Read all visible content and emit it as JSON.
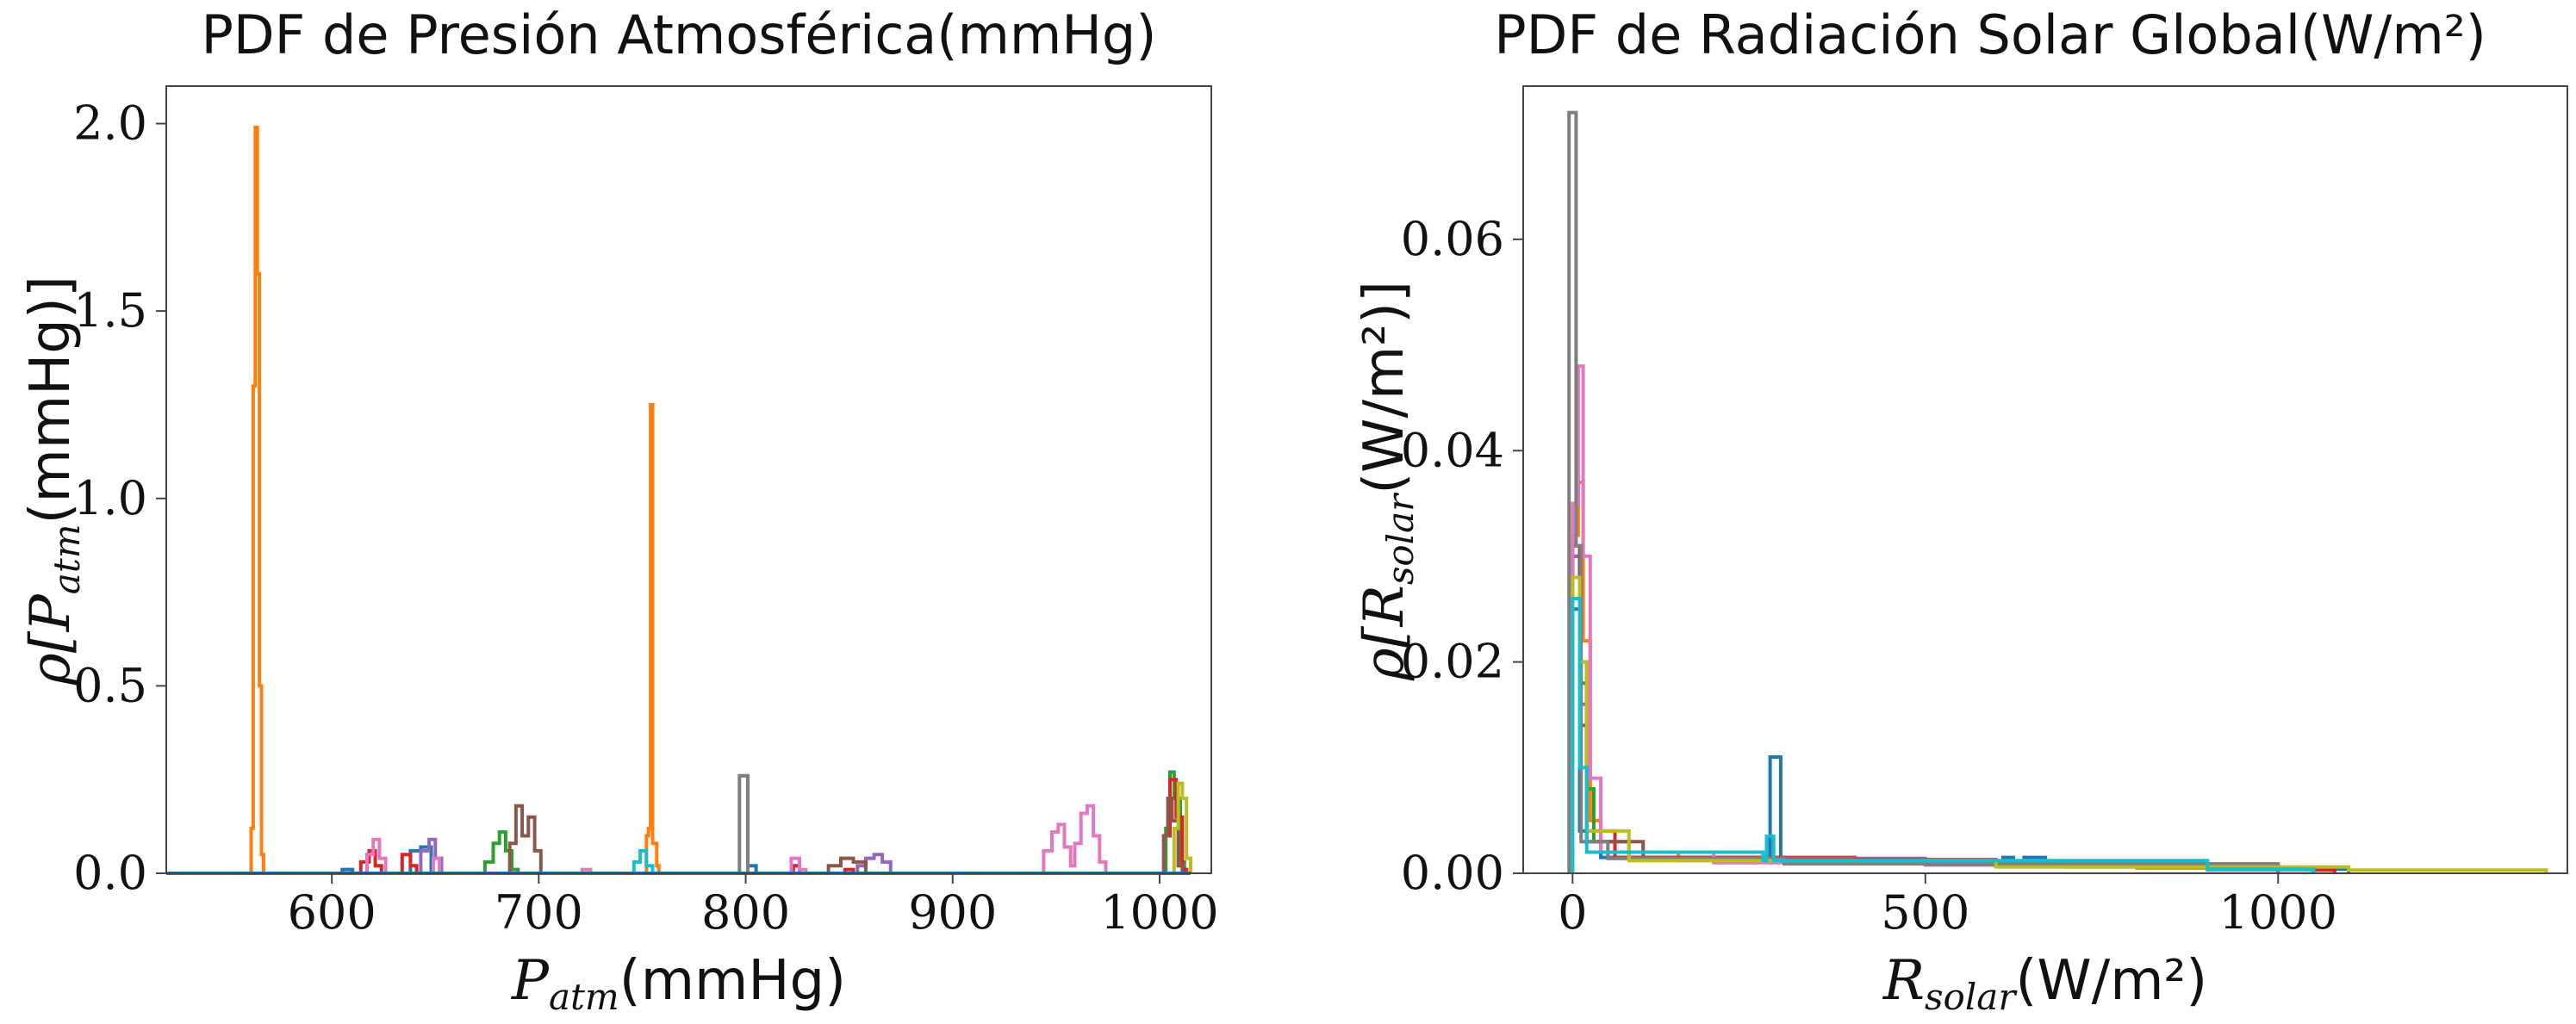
{
  "chart_data": [
    {
      "type": "step histogram",
      "title": "PDF de Presión Atmosférica(mmHg)",
      "xlabel": {
        "math": "P",
        "sub": "atm",
        "unit": "(mmHg)"
      },
      "ylabel": {
        "rho": "ρ[",
        "math": "P",
        "sub": "atm",
        "unit": "(mmHg)]"
      },
      "xlim": [
        520,
        1025
      ],
      "ylim": [
        0,
        2.1
      ],
      "xticks": [
        600,
        700,
        800,
        900,
        1000
      ],
      "xtick_labels": [
        "600",
        "700",
        "800",
        "900",
        "1000"
      ],
      "yticks": [
        0.0,
        0.5,
        1.0,
        1.5,
        2.0
      ],
      "ytick_labels": [
        "0.0",
        "0.5",
        "1.0",
        "1.5",
        "2.0"
      ],
      "grid": false,
      "series": [
        {
          "color": "#1f77b4",
          "values": [
            [
              535,
              0
            ],
            [
              600,
              0
            ],
            [
              605,
              0.01
            ],
            [
              610,
              0
            ],
            [
              635,
              0
            ],
            [
              638,
              0.06
            ],
            [
              643,
              0.07
            ],
            [
              648,
              0
            ],
            [
              800,
              0
            ],
            [
              801,
              0.02
            ],
            [
              805,
              0
            ],
            [
              1000,
              0
            ],
            [
              1015,
              0
            ]
          ]
        },
        {
          "color": "#ff7f0e",
          "values": [
            [
              555,
              0
            ],
            [
              561,
              0.12
            ],
            [
              562,
              1.3
            ],
            [
              563,
              1.99
            ],
            [
              564,
              1.6
            ],
            [
              565,
              0.5
            ],
            [
              566,
              0.05
            ],
            [
              567,
              0
            ],
            [
              750,
              0
            ],
            [
              752,
              0.1
            ],
            [
              753,
              0.12
            ],
            [
              754,
              1.25
            ],
            [
              755,
              0.08
            ],
            [
              757,
              0.02
            ],
            [
              758,
              0
            ]
          ]
        },
        {
          "color": "#2ca02c",
          "values": [
            [
              670,
              0
            ],
            [
              674,
              0.03
            ],
            [
              678,
              0.08
            ],
            [
              681,
              0.11
            ],
            [
              684,
              0.06
            ],
            [
              687,
              0.01
            ],
            [
              690,
              0
            ],
            [
              1000,
              0
            ],
            [
              1003,
              0.12
            ],
            [
              1005,
              0.27
            ],
            [
              1007,
              0.2
            ],
            [
              1010,
              0.03
            ],
            [
              1012,
              0
            ]
          ]
        },
        {
          "color": "#d62728",
          "values": [
            [
              610,
              0
            ],
            [
              614,
              0.03
            ],
            [
              618,
              0.06
            ],
            [
              621,
              0.02
            ],
            [
              624,
              0
            ],
            [
              630,
              0
            ],
            [
              634,
              0.05
            ],
            [
              638,
              0.02
            ],
            [
              641,
              0
            ],
            [
              820,
              0
            ],
            [
              823,
              0.02
            ],
            [
              826,
              0
            ],
            [
              845,
              0
            ],
            [
              848,
              0.01
            ],
            [
              852,
              0
            ],
            [
              998,
              0
            ],
            [
              1002,
              0.1
            ],
            [
              1005,
              0.25
            ],
            [
              1008,
              0.15
            ],
            [
              1011,
              0.01
            ],
            [
              1013,
              0
            ]
          ]
        },
        {
          "color": "#9467bd",
          "values": [
            [
              640,
              0
            ],
            [
              643,
              0.06
            ],
            [
              647,
              0.09
            ],
            [
              650,
              0.04
            ],
            [
              653,
              0
            ],
            [
              850,
              0
            ],
            [
              854,
              0.02
            ],
            [
              858,
              0.04
            ],
            [
              862,
              0.05
            ],
            [
              866,
              0.03
            ],
            [
              870,
              0
            ]
          ]
        },
        {
          "color": "#8c564b",
          "values": [
            [
              682,
              0
            ],
            [
              686,
              0.08
            ],
            [
              689,
              0.18
            ],
            [
              692,
              0.1
            ],
            [
              695,
              0.15
            ],
            [
              698,
              0.06
            ],
            [
              701,
              0
            ],
            [
              835,
              0
            ],
            [
              840,
              0.02
            ],
            [
              846,
              0.04
            ],
            [
              852,
              0.03
            ],
            [
              858,
              0
            ],
            [
              998,
              0
            ],
            [
              1002,
              0.1
            ],
            [
              1004,
              0.2
            ],
            [
              1006,
              0.14
            ],
            [
              1009,
              0.02
            ],
            [
              1011,
              0
            ]
          ]
        },
        {
          "color": "#e377c2",
          "values": [
            [
              614,
              0
            ],
            [
              617,
              0.05
            ],
            [
              620,
              0.09
            ],
            [
              623,
              0.04
            ],
            [
              626,
              0
            ],
            [
              646,
              0
            ],
            [
              649,
              0.04
            ],
            [
              652,
              0
            ],
            [
              718,
              0
            ],
            [
              721,
              0.01
            ],
            [
              725,
              0
            ],
            [
              818,
              0
            ],
            [
              822,
              0.04
            ],
            [
              826,
              0.01
            ],
            [
              829,
              0
            ],
            [
              940,
              0
            ],
            [
              944,
              0.06
            ],
            [
              948,
              0.11
            ],
            [
              951,
              0.13
            ],
            [
              954,
              0.07
            ],
            [
              957,
              0.02
            ],
            [
              959,
              0.08
            ],
            [
              962,
              0.16
            ],
            [
              965,
              0.18
            ],
            [
              968,
              0.1
            ],
            [
              971,
              0.03
            ],
            [
              974,
              0
            ]
          ]
        },
        {
          "color": "#7f7f7f",
          "values": [
            [
              796,
              0
            ],
            [
              797,
              0.26
            ],
            [
              800,
              0.26
            ],
            [
              801,
              0
            ]
          ]
        },
        {
          "color": "#bcbd22",
          "values": [
            [
              1004,
              0
            ],
            [
              1007,
              0.12
            ],
            [
              1009,
              0.24
            ],
            [
              1011,
              0.2
            ],
            [
              1013,
              0.04
            ],
            [
              1015,
              0
            ]
          ]
        },
        {
          "color": "#17becf",
          "values": [
            [
              743,
              0
            ],
            [
              746,
              0.03
            ],
            [
              749,
              0.06
            ],
            [
              752,
              0.02
            ],
            [
              755,
              0
            ]
          ]
        },
        {
          "color": "#1f77b4",
          "values": [
            [
              520,
              0
            ],
            [
              535,
              0
            ],
            [
              1015,
              0
            ]
          ]
        }
      ]
    },
    {
      "type": "step histogram",
      "title": "PDF de Radiación Solar Global(W/m²)",
      "xlabel": {
        "math": "R",
        "sub": "solar",
        "unit": "(W/m²)"
      },
      "ylabel": {
        "rho": "ρ[",
        "math": "R",
        "sub": "solar",
        "unit": "(W/m²)]"
      },
      "xlim": [
        -70,
        1410
      ],
      "ylim": [
        0,
        0.0745
      ],
      "xticks": [
        0,
        500,
        1000
      ],
      "xtick_labels": [
        "0",
        "500",
        "1000"
      ],
      "yticks": [
        0.0,
        0.02,
        0.04,
        0.06
      ],
      "ytick_labels": [
        "0.00",
        "0.02",
        "0.04",
        "0.06"
      ],
      "grid": false,
      "series": [
        {
          "color": "#1f77b4",
          "values": [
            [
              0,
              0.025
            ],
            [
              10,
              0.004
            ],
            [
              40,
              0.0015
            ],
            [
              270,
              0.0012
            ],
            [
              280,
              0.011
            ],
            [
              295,
              0.0012
            ],
            [
              600,
              0.0009
            ],
            [
              610,
              0.0015
            ],
            [
              625,
              0.0009
            ],
            [
              640,
              0.0015
            ],
            [
              670,
              0.0009
            ],
            [
              900,
              0.0004
            ],
            [
              1100,
              0
            ]
          ]
        },
        {
          "color": "#ff7f0e",
          "values": [
            [
              0,
              0.032
            ],
            [
              8,
              0.037
            ],
            [
              15,
              0.022
            ],
            [
              25,
              0.005
            ],
            [
              40,
              0.002
            ],
            [
              150,
              0.0012
            ],
            [
              400,
              0.0009
            ],
            [
              800,
              0.0005
            ],
            [
              1050,
              0
            ]
          ]
        },
        {
          "color": "#2ca02c",
          "values": [
            [
              0,
              0.028
            ],
            [
              10,
              0.018
            ],
            [
              20,
              0.008
            ],
            [
              30,
              0.003
            ],
            [
              60,
              0.0015
            ],
            [
              300,
              0.001
            ],
            [
              700,
              0.0006
            ],
            [
              1000,
              0
            ]
          ]
        },
        {
          "color": "#d62728",
          "values": [
            [
              0,
              0.03
            ],
            [
              10,
              0.02
            ],
            [
              20,
              0.004
            ],
            [
              60,
              0.0015
            ],
            [
              400,
              0.0009
            ],
            [
              900,
              0.0003
            ],
            [
              1080,
              0
            ]
          ]
        },
        {
          "color": "#9467bd",
          "values": [
            [
              0,
              0.03
            ],
            [
              10,
              0.016
            ],
            [
              20,
              0.003
            ],
            [
              80,
              0.0014
            ],
            [
              500,
              0.0008
            ],
            [
              1000,
              0
            ]
          ]
        },
        {
          "color": "#8c564b",
          "values": [
            [
              0,
              0.031
            ],
            [
              10,
              0.014
            ],
            [
              20,
              0.003
            ],
            [
              100,
              0.0013
            ],
            [
              600,
              0.0007
            ],
            [
              1000,
              0
            ]
          ]
        },
        {
          "color": "#e377c2",
          "values": [
            [
              0,
              0.035
            ],
            [
              8,
              0.048
            ],
            [
              15,
              0.03
            ],
            [
              25,
              0.009
            ],
            [
              40,
              0.002
            ],
            [
              200,
              0.001
            ],
            [
              900,
              0.0003
            ],
            [
              1050,
              0
            ]
          ]
        },
        {
          "color": "#7f7f7f",
          "values": [
            [
              -5,
              0.072
            ],
            [
              5,
              0.031
            ],
            [
              12,
              0.003
            ],
            [
              50,
              0.0014
            ],
            [
              300,
              0.0009
            ],
            [
              1000,
              0
            ]
          ]
        },
        {
          "color": "#bcbd22",
          "values": [
            [
              0,
              0.028
            ],
            [
              10,
              0.02
            ],
            [
              20,
              0.004
            ],
            [
              80,
              0.0012
            ],
            [
              600,
              0.0006
            ],
            [
              1100,
              0.0003
            ],
            [
              1380,
              0
            ]
          ]
        },
        {
          "color": "#17becf",
          "values": [
            [
              0,
              0.026
            ],
            [
              10,
              0.01
            ],
            [
              20,
              0.002
            ],
            [
              270,
              0.0012
            ],
            [
              275,
              0.0035
            ],
            [
              285,
              0.0012
            ],
            [
              900,
              0.0004
            ],
            [
              1050,
              0
            ]
          ]
        }
      ]
    }
  ]
}
